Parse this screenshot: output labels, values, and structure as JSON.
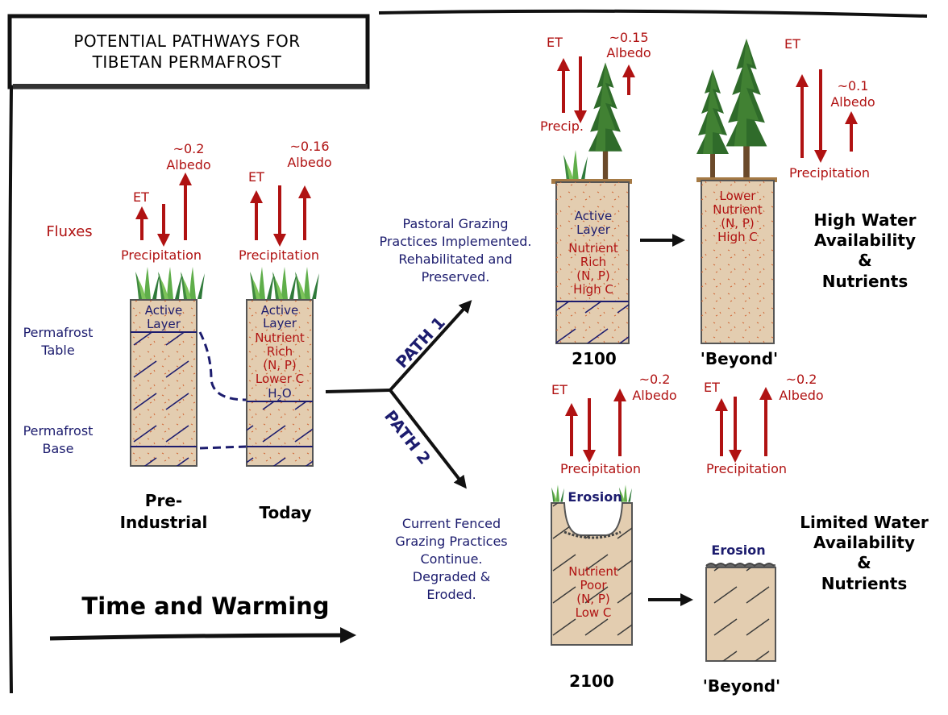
{
  "title": {
    "line1": "POTENTIAL PATHWAYS FOR",
    "line2": "TIBETAN PERMAFROST"
  },
  "colors": {
    "flux_red": "#b01212",
    "label_navy": "#1c1c6e",
    "soil": "#e3cdb0",
    "frame": "#111111"
  },
  "left": {
    "fluxes": "Fluxes",
    "permafrost_table": [
      "Permafrost",
      "Table"
    ],
    "permafrost_base": [
      "Permafrost",
      "Base"
    ],
    "time_warming": "Time and Warming",
    "pre": {
      "et": "ET",
      "albedo": [
        "~0.2",
        "Albedo"
      ],
      "precip": "Precipitation",
      "active": [
        "Active",
        "Layer"
      ],
      "caption": [
        "Pre-",
        "Industrial"
      ]
    },
    "today": {
      "et": "ET",
      "albedo": [
        "~0.16",
        "Albedo"
      ],
      "precip": "Precipitation",
      "active": [
        "Active",
        "Layer"
      ],
      "nutrients": [
        "Nutrient",
        "Rich",
        "(N, P)",
        "Lower C"
      ],
      "water": "H",
      "water_sub": "2",
      "water_end": "O",
      "caption": "Today"
    }
  },
  "paths": {
    "path1_label": "PATH 1",
    "path2_label": "PATH 2",
    "path1_desc": [
      "Pastoral Grazing",
      "Practices Implemented.",
      "Rehabilitated and",
      "Preserved."
    ],
    "path2_desc": [
      "Current Fenced",
      "Grazing Practices",
      "Continue.",
      "Degraded &",
      "Eroded."
    ]
  },
  "path1": {
    "c2100": {
      "et": "ET",
      "albedo": [
        "~0.15",
        "Albedo"
      ],
      "precip": "Precip.",
      "active": [
        "Active",
        "Layer"
      ],
      "nutrients": [
        "Nutrient",
        "Rich",
        "(N, P)",
        "High C"
      ],
      "caption": "2100"
    },
    "beyond": {
      "et": "ET",
      "albedo": [
        "~0.1",
        "Albedo"
      ],
      "precip": "Precipitation",
      "nutrients": [
        "Lower",
        "Nutrient",
        "(N, P)",
        "High C"
      ],
      "caption": "'Beyond'"
    },
    "outcome": [
      "High Water",
      "Availability",
      "&",
      "Nutrients"
    ]
  },
  "path2": {
    "c2100": {
      "et": "ET",
      "albedo": [
        "~0.2",
        "Albedo"
      ],
      "precip": "Precipitation",
      "erosion": "Erosion",
      "nutrients": [
        "Nutrient",
        "Poor",
        "(N, P)",
        "Low C"
      ],
      "caption": "2100"
    },
    "beyond": {
      "et": "ET",
      "albedo": [
        "~0.2",
        "Albedo"
      ],
      "precip": "Precipitation",
      "erosion": "Erosion",
      "caption": "'Beyond'"
    },
    "outcome": [
      "Limited Water",
      "Availability",
      "&",
      "Nutrients"
    ]
  }
}
